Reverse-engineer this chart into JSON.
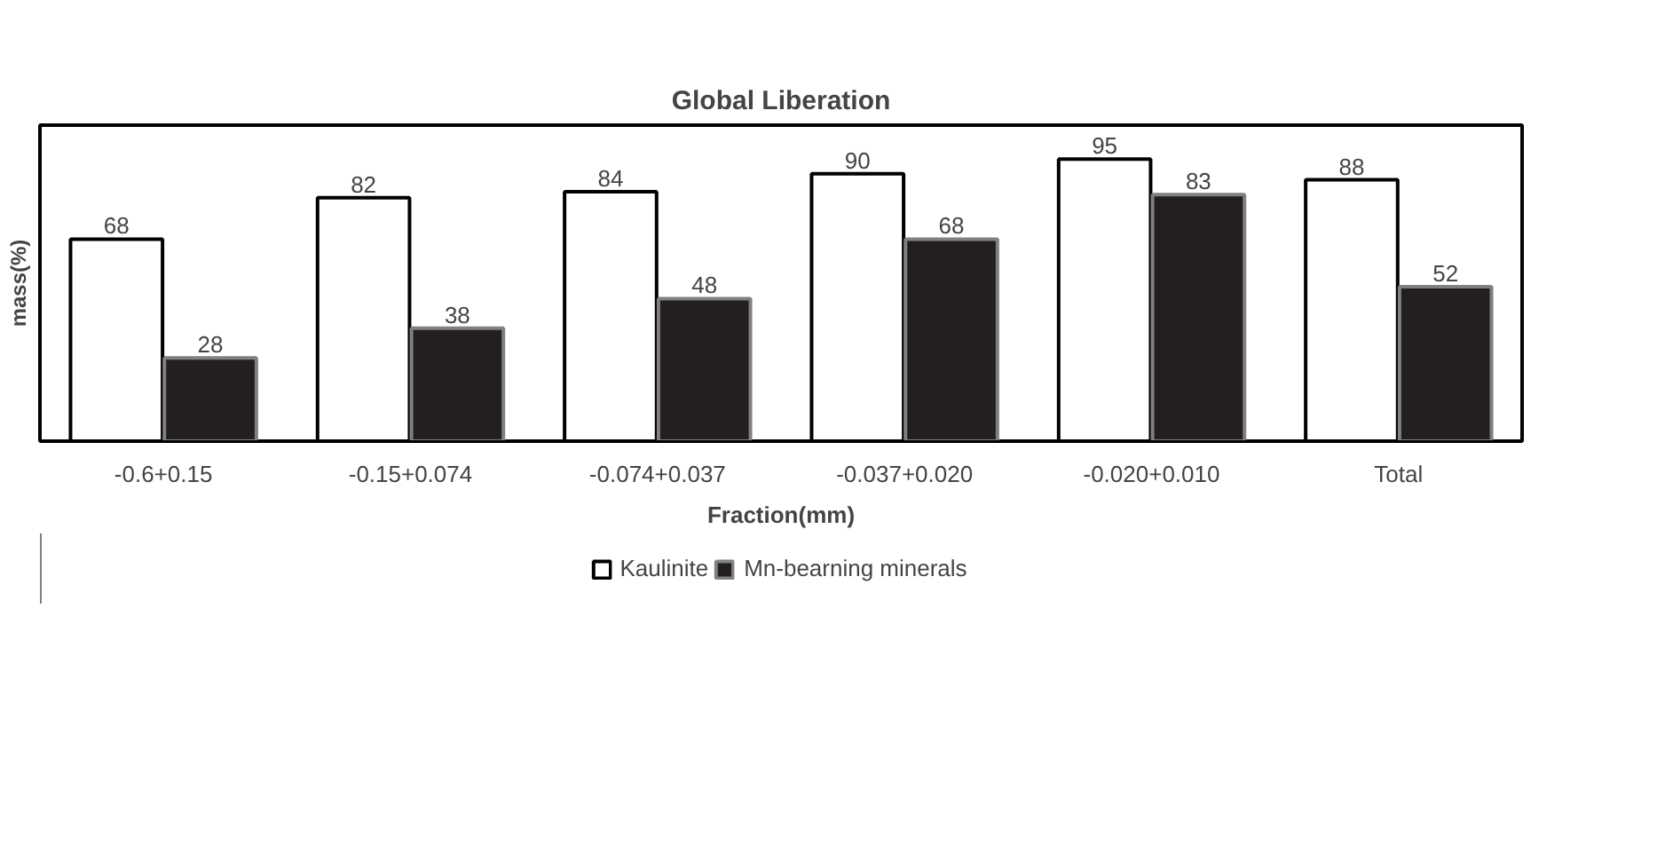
{
  "chart_data": {
    "type": "bar",
    "title": "Global Liberation",
    "xlabel": "Fraction(mm)",
    "ylabel": "mass(%)",
    "categories": [
      "-0.6+0.15",
      "-0.15+0.074",
      "-0.074+0.037",
      "-0.037+0.020",
      "-0.020+0.010",
      "Total"
    ],
    "series": [
      {
        "name": "Kaulinite",
        "color": "#ffffff",
        "values": [
          68,
          82,
          84,
          90,
          95,
          88
        ]
      },
      {
        "name": "Mn-bearning minerals",
        "color": "#231f20",
        "values": [
          28,
          38,
          48,
          68,
          83,
          52
        ]
      }
    ],
    "data_labels": true,
    "legend": "bottom"
  }
}
